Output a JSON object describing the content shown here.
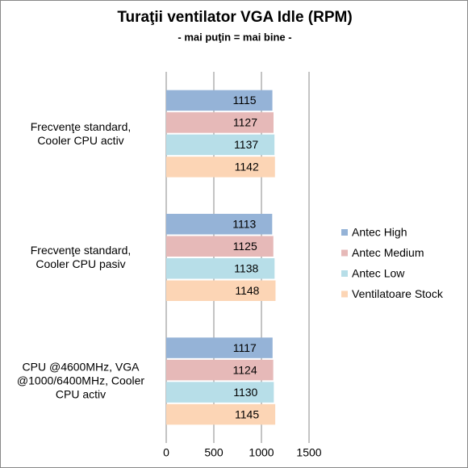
{
  "chart_data": {
    "type": "hbar",
    "title": "Turaţii  ventilator VGA Idle (RPM)",
    "subtitle": "- mai puţin = mai bine -",
    "categories": [
      "Frecvenţe standard,\nCooler CPU activ",
      "Frecvenţe standard,\nCooler CPU pasiv",
      "CPU @4600MHz, VGA\n@1000/6400MHz, Cooler\nCPU activ"
    ],
    "series": [
      {
        "name": "Antec High",
        "color": "#95b3d7",
        "values": [
          1115,
          1113,
          1117
        ]
      },
      {
        "name": "Antec Medium",
        "color": "#e6b9b8",
        "values": [
          1127,
          1125,
          1124
        ]
      },
      {
        "name": "Antec Low",
        "color": "#b7dee8",
        "values": [
          1137,
          1138,
          1130
        ]
      },
      {
        "name": "Ventilatoare Stock",
        "color": "#fcd5b5",
        "values": [
          1142,
          1148,
          1145
        ]
      }
    ],
    "xlim": [
      0,
      1500
    ],
    "xticks": [
      0,
      500,
      1000,
      1500
    ],
    "grid": true,
    "legend": "right"
  }
}
